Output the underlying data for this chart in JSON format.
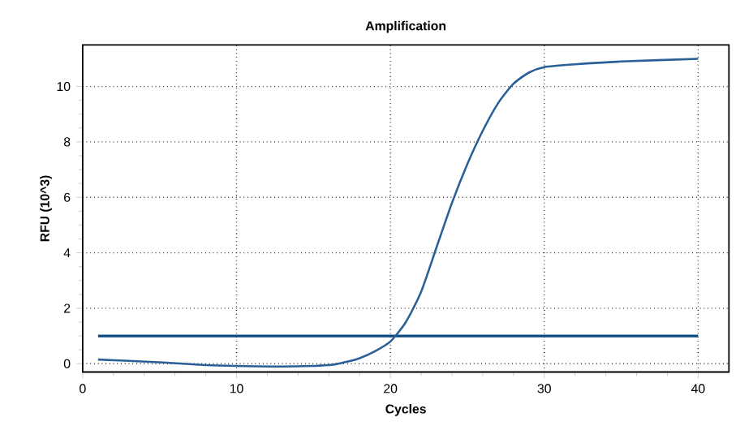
{
  "chart_data": {
    "type": "line",
    "title": "Amplification",
    "xlabel": "Cycles",
    "ylabel": "RFU (10^3)",
    "x": [
      1,
      3,
      5,
      8,
      10,
      13,
      16,
      17,
      18,
      19,
      20,
      21,
      22,
      23,
      24,
      25,
      26,
      27,
      28,
      29,
      30,
      32,
      35,
      40
    ],
    "series": [
      {
        "color": "#2a5f98",
        "values": [
          0.15,
          0.1,
          0.05,
          -0.05,
          -0.08,
          -0.1,
          -0.05,
          0.05,
          0.2,
          0.45,
          0.8,
          1.5,
          2.6,
          4.2,
          5.8,
          7.2,
          8.4,
          9.4,
          10.1,
          10.5,
          10.7,
          10.8,
          10.9,
          11.0
        ]
      }
    ],
    "ref_lines": [
      {
        "axis": "y",
        "value": 1,
        "color": "#0b4a80"
      }
    ],
    "xlim": [
      0,
      42
    ],
    "ylim": [
      -0.3,
      11.5
    ],
    "xticks": [
      0,
      10,
      20,
      30,
      40
    ],
    "yticks": [
      0,
      2,
      4,
      6,
      8,
      10
    ],
    "grid": true,
    "marker": "none",
    "line_style": "solid"
  }
}
